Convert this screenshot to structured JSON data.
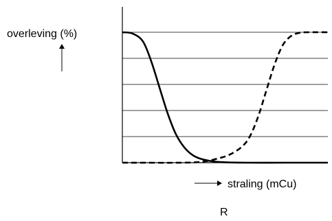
{
  "chart_data": {
    "type": "line",
    "ylabel": "overleving (%)",
    "xlabel": "straling (mCu)",
    "panel_label": "R",
    "ylim": [
      0,
      100
    ],
    "xlim": [
      0,
      100
    ],
    "grid": {
      "horizontal": true,
      "vertical": false,
      "y_gridlines": [
        0,
        20,
        40,
        60,
        80,
        100
      ]
    },
    "axes_arrows": {
      "y": "up",
      "x": "right"
    },
    "series": [
      {
        "style": "solid",
        "color": "#000000",
        "x": [
          0,
          5,
          10,
          14,
          18,
          22,
          26,
          30,
          34,
          38,
          44,
          50,
          60,
          80,
          100
        ],
        "y": [
          100,
          99,
          93,
          78,
          58,
          38,
          22,
          12,
          6,
          3,
          1,
          0.3,
          0,
          0,
          0
        ]
      },
      {
        "style": "dashed",
        "color": "#000000",
        "x": [
          0,
          30,
          40,
          46,
          52,
          58,
          62,
          66,
          70,
          74,
          78,
          82,
          86,
          90,
          100
        ],
        "y": [
          0,
          0,
          1,
          3,
          6,
          12,
          20,
          35,
          55,
          75,
          90,
          97,
          99.5,
          100,
          100
        ]
      }
    ]
  }
}
